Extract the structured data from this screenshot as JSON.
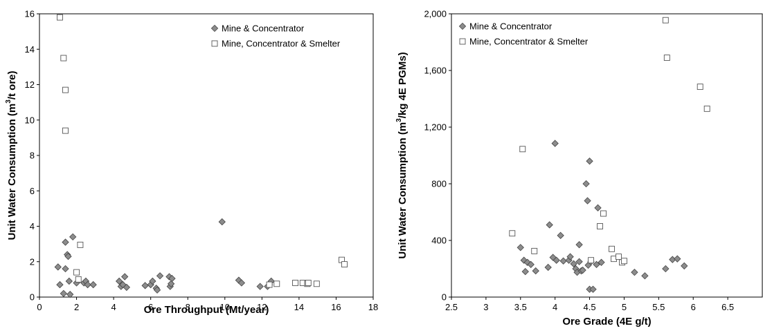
{
  "chart_data": [
    {
      "type": "scatter",
      "xlabel": "Ore Throughput (Mt/year)",
      "ylabel_pre": "Unit Water Consumption (m",
      "ylabel_sup": "3",
      "ylabel_post": "/t ore)",
      "xlim": [
        0,
        18
      ],
      "ylim": [
        0,
        16
      ],
      "xticks": [
        0,
        2,
        4,
        6,
        8,
        10,
        12,
        14,
        16,
        18
      ],
      "yticks": [
        0,
        2,
        4,
        6,
        8,
        10,
        12,
        14,
        16
      ],
      "legend_position": "top-right",
      "series": [
        {
          "name": "Mine & Concentrator",
          "marker": "diamond",
          "color": "#8c8c8c",
          "points": [
            [
              1.0,
              1.7
            ],
            [
              1.1,
              0.7
            ],
            [
              1.3,
              0.2
            ],
            [
              1.4,
              1.6
            ],
            [
              1.4,
              3.1
            ],
            [
              1.5,
              2.4
            ],
            [
              1.55,
              2.3
            ],
            [
              1.6,
              0.9
            ],
            [
              1.65,
              0.15
            ],
            [
              1.8,
              3.4
            ],
            [
              2.0,
              0.8
            ],
            [
              2.4,
              0.8
            ],
            [
              2.5,
              0.9
            ],
            [
              2.6,
              0.7
            ],
            [
              2.9,
              0.7
            ],
            [
              4.3,
              0.9
            ],
            [
              4.4,
              0.6
            ],
            [
              4.5,
              0.7
            ],
            [
              4.6,
              1.15
            ],
            [
              4.7,
              0.55
            ],
            [
              5.7,
              0.65
            ],
            [
              6.0,
              0.7
            ],
            [
              6.1,
              0.9
            ],
            [
              6.3,
              0.5
            ],
            [
              6.35,
              0.4
            ],
            [
              6.5,
              1.2
            ],
            [
              7.0,
              1.15
            ],
            [
              7.05,
              0.6
            ],
            [
              7.1,
              0.75
            ],
            [
              7.15,
              1.05
            ],
            [
              9.85,
              4.25
            ],
            [
              10.75,
              0.95
            ],
            [
              10.9,
              0.8
            ],
            [
              11.9,
              0.6
            ],
            [
              12.3,
              0.6
            ],
            [
              12.4,
              0.7
            ],
            [
              12.5,
              0.9
            ]
          ]
        },
        {
          "name": "Mine, Concentrator & Smelter",
          "marker": "square",
          "color": "#ffffff",
          "points": [
            [
              1.1,
              15.8
            ],
            [
              1.3,
              13.5
            ],
            [
              1.4,
              11.7
            ],
            [
              1.4,
              9.4
            ],
            [
              2.0,
              1.4
            ],
            [
              2.1,
              1.0
            ],
            [
              2.2,
              2.95
            ],
            [
              12.4,
              0.7
            ],
            [
              12.8,
              0.75
            ],
            [
              13.8,
              0.8
            ],
            [
              14.2,
              0.8
            ],
            [
              14.45,
              0.75
            ],
            [
              14.5,
              0.8
            ],
            [
              14.95,
              0.75
            ],
            [
              16.3,
              2.1
            ],
            [
              16.45,
              1.85
            ]
          ]
        }
      ]
    },
    {
      "type": "scatter",
      "xlabel": "Ore Grade (4E g/t)",
      "ylabel_pre": "Unit Water Consumption (m",
      "ylabel_sup": "3",
      "ylabel_post": "/kg 4E PGMs)",
      "xlim": [
        2.5,
        7
      ],
      "ylim": [
        0,
        2000
      ],
      "xticks": [
        2.5,
        3,
        3.5,
        4,
        4.5,
        5,
        5.5,
        6,
        6.5
      ],
      "xtick_labels": [
        "2.5",
        "3",
        "3.5",
        "4",
        "4.5",
        "5",
        "5.5",
        "6",
        "6.5"
      ],
      "yticks": [
        0,
        400,
        800,
        1200,
        1600,
        2000
      ],
      "ytick_labels": [
        "0",
        "400",
        "800",
        "1,200",
        "1,600",
        "2,000"
      ],
      "legend_position": "top-left",
      "series": [
        {
          "name": "Mine & Concentrator",
          "marker": "diamond",
          "color": "#8c8c8c",
          "points": [
            [
              3.5,
              350
            ],
            [
              3.55,
              260
            ],
            [
              3.57,
              180
            ],
            [
              3.6,
              245
            ],
            [
              3.65,
              230
            ],
            [
              3.72,
              185
            ],
            [
              3.9,
              210
            ],
            [
              3.92,
              510
            ],
            [
              3.97,
              280
            ],
            [
              4.0,
              1085
            ],
            [
              4.02,
              260
            ],
            [
              4.08,
              435
            ],
            [
              4.12,
              255
            ],
            [
              4.2,
              260
            ],
            [
              4.22,
              285
            ],
            [
              4.27,
              235
            ],
            [
              4.3,
              200
            ],
            [
              4.32,
              175
            ],
            [
              4.35,
              370
            ],
            [
              4.35,
              250
            ],
            [
              4.38,
              185
            ],
            [
              4.4,
              190
            ],
            [
              4.45,
              800
            ],
            [
              4.47,
              680
            ],
            [
              4.48,
              225
            ],
            [
              4.5,
              960
            ],
            [
              4.5,
              55
            ],
            [
              4.52,
              250
            ],
            [
              4.55,
              55
            ],
            [
              4.6,
              230
            ],
            [
              4.62,
              630
            ],
            [
              4.67,
              245
            ],
            [
              5.15,
              175
            ],
            [
              5.3,
              150
            ],
            [
              5.6,
              200
            ],
            [
              5.7,
              265
            ],
            [
              5.77,
              270
            ],
            [
              5.87,
              220
            ]
          ]
        },
        {
          "name": "Mine, Concentrator & Smelter",
          "marker": "square",
          "color": "#ffffff",
          "points": [
            [
              3.38,
              450
            ],
            [
              3.53,
              1045
            ],
            [
              3.7,
              325
            ],
            [
              4.52,
              260
            ],
            [
              4.65,
              500
            ],
            [
              4.7,
              590
            ],
            [
              4.82,
              340
            ],
            [
              4.85,
              270
            ],
            [
              4.92,
              285
            ],
            [
              4.97,
              245
            ],
            [
              5.0,
              255
            ],
            [
              5.6,
              1955
            ],
            [
              5.62,
              1690
            ],
            [
              6.1,
              1485
            ],
            [
              6.2,
              1330
            ]
          ]
        }
      ]
    }
  ]
}
